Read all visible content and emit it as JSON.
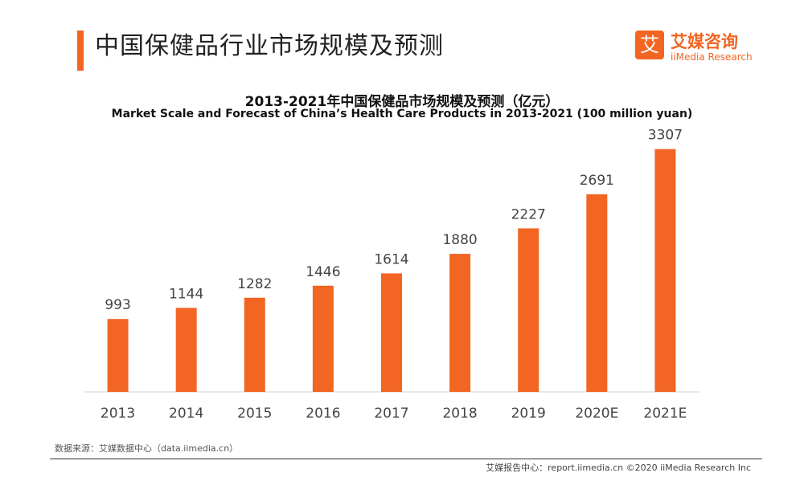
{
  "header": {
    "title": "中国保健品行业市场规模及预测",
    "logo_mark": "艾",
    "logo_cn": "艾媒咨询",
    "logo_en": "iiMedia Research"
  },
  "colors": {
    "accent": "#f26522",
    "bar": "#f26522"
  },
  "chart_data": {
    "type": "bar",
    "title": "2013-2021年中国保健品市场规模及预测（亿元）",
    "subtitle": "Market Scale and Forecast of China’s Health Care Products in 2013-2021 (100 million yuan)",
    "categories": [
      "2013",
      "2014",
      "2015",
      "2016",
      "2017",
      "2018",
      "2019",
      "2020E",
      "2021E"
    ],
    "values": [
      993,
      1144,
      1282,
      1446,
      1614,
      1880,
      2227,
      2691,
      3307
    ],
    "xlabel": "",
    "ylabel": "",
    "ylim": [
      0,
      3500
    ],
    "grid": false,
    "legend": "none"
  },
  "footer": {
    "source": "数据来源：艾媒数据中心（data.iimedia.cn）",
    "copyright": "艾媒报告中心：report.iimedia.cn ©2020  iiMedia Research Inc"
  }
}
